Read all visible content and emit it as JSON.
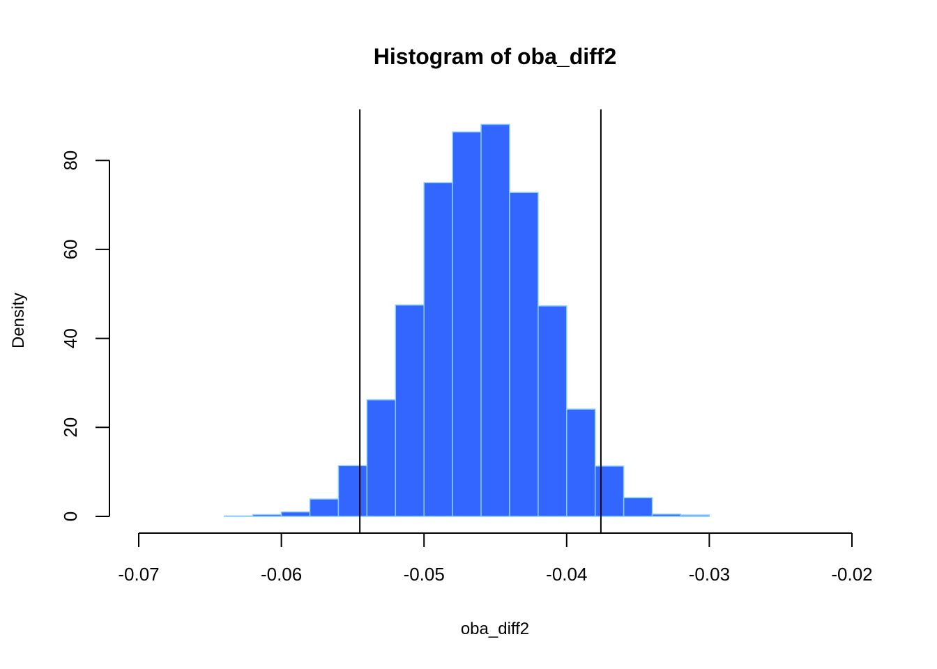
{
  "chart_data": {
    "type": "bar",
    "subtype": "histogram",
    "title": "Histogram of oba_diff2",
    "xlabel": "oba_diff2",
    "ylabel": "Density",
    "bin_width": 0.002,
    "bins": [
      {
        "start": -0.064,
        "end": -0.062,
        "density": 0.1
      },
      {
        "start": -0.062,
        "end": -0.06,
        "density": 0.4
      },
      {
        "start": -0.06,
        "end": -0.058,
        "density": 1.0
      },
      {
        "start": -0.058,
        "end": -0.056,
        "density": 3.9
      },
      {
        "start": -0.056,
        "end": -0.054,
        "density": 11.4
      },
      {
        "start": -0.054,
        "end": -0.052,
        "density": 26.2
      },
      {
        "start": -0.052,
        "end": -0.05,
        "density": 47.5
      },
      {
        "start": -0.05,
        "end": -0.048,
        "density": 75.0
      },
      {
        "start": -0.048,
        "end": -0.046,
        "density": 86.4
      },
      {
        "start": -0.046,
        "end": -0.044,
        "density": 88.1
      },
      {
        "start": -0.044,
        "end": -0.042,
        "density": 72.8
      },
      {
        "start": -0.042,
        "end": -0.04,
        "density": 47.3
      },
      {
        "start": -0.04,
        "end": -0.038,
        "density": 24.1
      },
      {
        "start": -0.038,
        "end": -0.036,
        "density": 11.3
      },
      {
        "start": -0.036,
        "end": -0.034,
        "density": 4.2
      },
      {
        "start": -0.034,
        "end": -0.032,
        "density": 0.5
      },
      {
        "start": -0.032,
        "end": -0.03,
        "density": 0.3
      }
    ],
    "vlines": [
      -0.0545,
      -0.0376
    ],
    "xlim": [
      -0.07,
      -0.02
    ],
    "ylim": [
      0,
      90
    ],
    "xticks": [
      -0.07,
      -0.06,
      -0.05,
      -0.04,
      -0.03,
      -0.02
    ],
    "xtick_labels": [
      "-0.07",
      "-0.06",
      "-0.05",
      "-0.04",
      "-0.03",
      "-0.02"
    ],
    "yticks": [
      0,
      20,
      40,
      60,
      80
    ],
    "ytick_labels": [
      "0",
      "20",
      "40",
      "60",
      "80"
    ],
    "grid": false,
    "bar_fill": "#3366FF",
    "bar_border": "#87CEFA",
    "vline_color": "#000000"
  }
}
